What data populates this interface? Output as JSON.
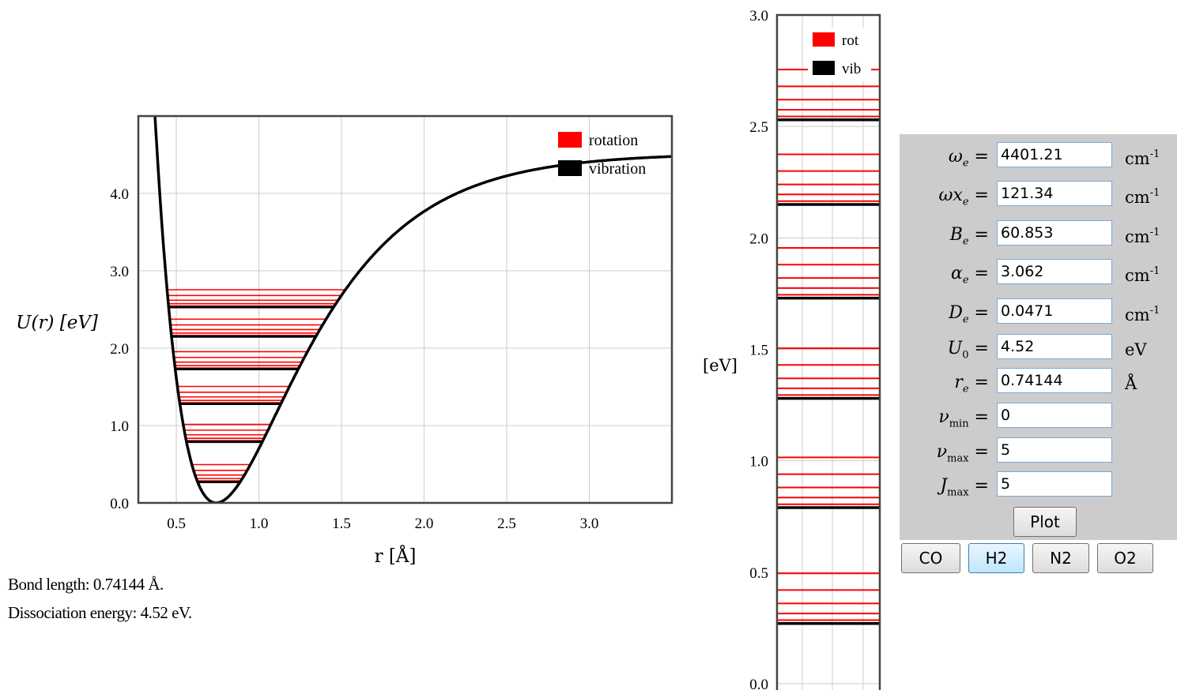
{
  "chart_data": [
    {
      "type": "line",
      "title": "",
      "xlabel": "r [Å]",
      "ylabel": "U(r) [eV]",
      "xlim": [
        0.27,
        3.5
      ],
      "ylim": [
        0,
        5
      ],
      "grid": true,
      "x_ticks": [
        0.5,
        1.0,
        1.5,
        2.0,
        2.5,
        3.0
      ],
      "x_tick_labels": [
        "0.5",
        "1.0",
        "1.5",
        "2.0",
        "2.5",
        "3.0"
      ],
      "y_ticks": [
        0,
        1,
        2,
        3,
        4
      ],
      "y_tick_labels": [
        "0.0",
        "1.0",
        "2.0",
        "3.0",
        "4.0"
      ],
      "legend": {
        "placement": "top-right",
        "entries": [
          {
            "label": "rotation",
            "color": "#ff0000"
          },
          {
            "label": "vibration",
            "color": "#000000"
          }
        ]
      },
      "series": [
        {
          "name": "potential",
          "kind": "morse",
          "D": 4.52,
          "re": 0.74144,
          "a": 1.94
        },
        {
          "name": "vibration",
          "kind": "levels",
          "values": [
            0.27,
            0.79,
            1.28,
            1.73,
            2.15,
            2.53
          ]
        },
        {
          "name": "rotation",
          "kind": "levels",
          "J_offsets": [
            0.0,
            0.015,
            0.045,
            0.09,
            0.15,
            0.225
          ]
        }
      ]
    },
    {
      "type": "line",
      "title": "",
      "ylabel": "[eV]",
      "ylim": [
        0,
        3
      ],
      "y_ticks": [
        0,
        0.5,
        1.0,
        1.5,
        2.0,
        2.5,
        3.0
      ],
      "y_tick_labels": [
        "0.0",
        "0.5",
        "1.0",
        "1.5",
        "2.0",
        "2.5",
        "3.0"
      ],
      "grid": true,
      "legend": {
        "placement": "top-right",
        "entries": [
          {
            "label": "rot",
            "color": "#ff0000"
          },
          {
            "label": "vib",
            "color": "#000000"
          }
        ]
      },
      "series": [
        {
          "name": "vib",
          "kind": "levels",
          "values": [
            0.27,
            0.79,
            1.28,
            1.73,
            2.15,
            2.53
          ]
        },
        {
          "name": "rot",
          "kind": "levels",
          "J_offsets": [
            0.0,
            0.015,
            0.045,
            0.09,
            0.15,
            0.225
          ]
        }
      ]
    }
  ],
  "info": {
    "bond_length": "Bond length: 0.74144 Å.",
    "dissociation": "Dissociation energy: 4.52 eV."
  },
  "params": [
    {
      "sym": "ω",
      "sub": "e",
      "value": "4401.21",
      "unit": "cm",
      "sup": "-1"
    },
    {
      "sym": "ωx",
      "sub": "e",
      "value": "121.34",
      "unit": "cm",
      "sup": "-1"
    },
    {
      "sym": "B",
      "sub": "e",
      "value": "60.853",
      "unit": "cm",
      "sup": "-1"
    },
    {
      "sym": "α",
      "sub": "e",
      "value": "3.062",
      "unit": "cm",
      "sup": "-1"
    },
    {
      "sym": "D",
      "sub": "e",
      "value": "0.0471",
      "unit": "cm",
      "sup": "-1"
    },
    {
      "sym": "U",
      "sub": "0",
      "value": "4.52",
      "unit": "eV",
      "sup": ""
    },
    {
      "sym": "r",
      "sub": "e",
      "value": "0.74144",
      "unit": "Å",
      "sup": ""
    },
    {
      "sym": "ν",
      "sub": "min",
      "value": "0",
      "unit": "",
      "sup": ""
    },
    {
      "sym": "ν",
      "sub": "max",
      "value": "5",
      "unit": "",
      "sup": ""
    },
    {
      "sym": "J",
      "sub": "max",
      "value": "5",
      "unit": "",
      "sup": ""
    }
  ],
  "buttons": {
    "plot": "Plot",
    "molecules": [
      "CO",
      "H2",
      "N2",
      "O2"
    ],
    "active": "H2"
  },
  "colors": {
    "rotation": "#ff0000",
    "vibration": "#000000",
    "panel_bg": "#cccccc",
    "grid": "#cccccc"
  }
}
